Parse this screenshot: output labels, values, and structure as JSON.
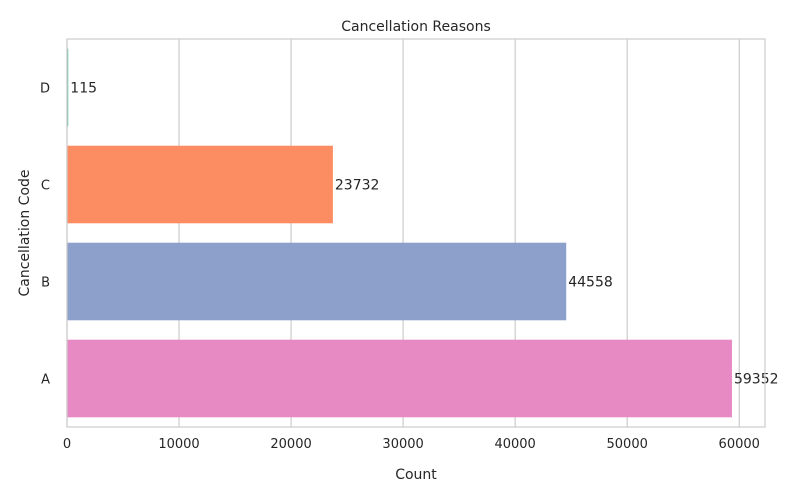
{
  "chart_data": {
    "type": "bar",
    "orientation": "horizontal",
    "title": "Cancellation Reasons",
    "xlabel": "Count",
    "ylabel": "Cancellation Code",
    "categories": [
      "D",
      "C",
      "B",
      "A"
    ],
    "values": [
      115,
      23732,
      44558,
      59352
    ],
    "data_labels": [
      "115",
      "23732",
      "44558",
      "59352"
    ],
    "colors": [
      "#66c2a5",
      "#fc8d62",
      "#8da0cb",
      "#e78ac3"
    ],
    "xlim": [
      0,
      62300
    ],
    "xticks": [
      0,
      10000,
      20000,
      30000,
      40000,
      50000,
      60000
    ],
    "xtick_labels": [
      "0",
      "10000",
      "20000",
      "30000",
      "40000",
      "50000",
      "60000"
    ],
    "grid": true,
    "legend": "none"
  }
}
